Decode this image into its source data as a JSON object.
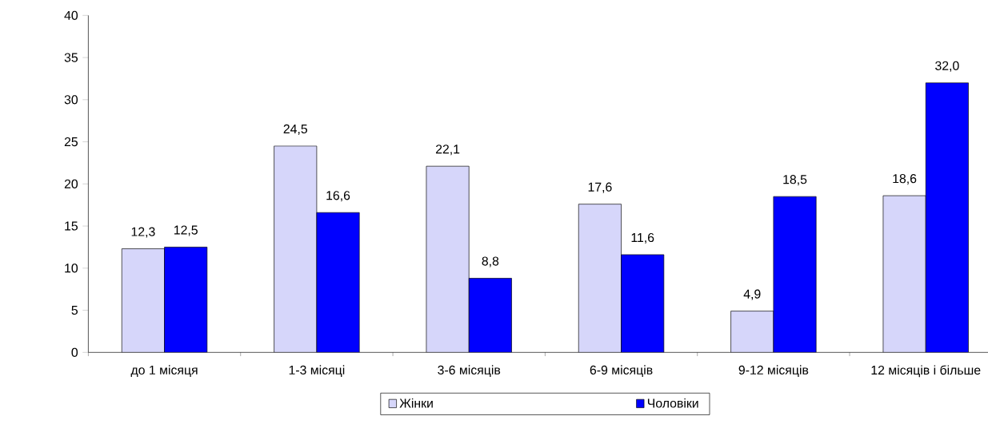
{
  "chart_data": {
    "type": "bar",
    "categories": [
      "до 1 місяця",
      "1-3 місяці",
      "3-6 місяців",
      "6-9 місяців",
      "9-12 місяців",
      "12 місяців і більше"
    ],
    "series": [
      {
        "name": "Жінки",
        "color": "#d6d6fa",
        "values": [
          12.3,
          24.5,
          22.1,
          17.6,
          4.9,
          18.6
        ],
        "value_labels": [
          "12,3",
          "24,5",
          "22,1",
          "17,6",
          "4,9",
          "18,6"
        ]
      },
      {
        "name": "Чоловіки",
        "color": "#0000ff",
        "values": [
          12.5,
          16.6,
          8.8,
          11.6,
          18.5,
          32.0
        ],
        "value_labels": [
          "12,5",
          "16,6",
          "8,8",
          "11,6",
          "18,5",
          "32,0"
        ]
      }
    ],
    "ylim": [
      0,
      40
    ],
    "yticks": [
      0,
      5,
      10,
      15,
      20,
      25,
      30,
      35,
      40
    ],
    "grid": false,
    "legend": "bottom"
  }
}
